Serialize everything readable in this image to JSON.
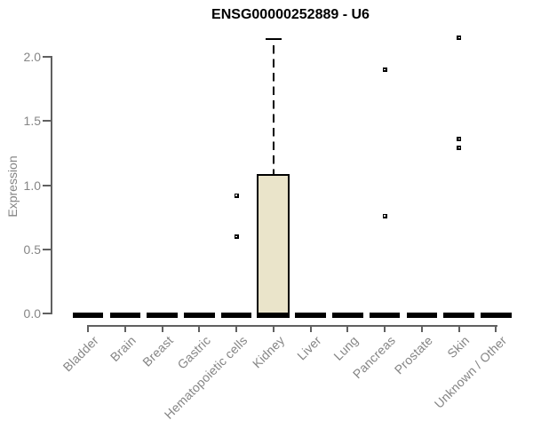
{
  "chart_data": {
    "type": "boxplot",
    "title": "ENSG00000252889 - U6",
    "ylabel": "Expression",
    "ylim": [
      0,
      2.15
    ],
    "yticks": [
      0,
      0.5,
      1,
      1.5,
      2
    ],
    "ytick_labels": [
      "0.0",
      "0.5",
      "1.0",
      "1.5",
      "2.0"
    ],
    "grid": false,
    "legend": false,
    "categories": [
      "Bladder",
      "Brain",
      "Breast",
      "Gastric",
      "Hematopoietic cells",
      "Kidney",
      "Liver",
      "Lung",
      "Pancreas",
      "Prostate",
      "Skin",
      "Unknown / Other"
    ],
    "boxes": [
      {
        "category": "Bladder",
        "q1": 0,
        "median": 0,
        "q3": 0,
        "whisker_low": 0,
        "whisker_high": 0,
        "outliers": []
      },
      {
        "category": "Brain",
        "q1": 0,
        "median": 0,
        "q3": 0,
        "whisker_low": 0,
        "whisker_high": 0,
        "outliers": []
      },
      {
        "category": "Breast",
        "q1": 0,
        "median": 0,
        "q3": 0,
        "whisker_low": 0,
        "whisker_high": 0,
        "outliers": []
      },
      {
        "category": "Gastric",
        "q1": 0,
        "median": 0,
        "q3": 0,
        "whisker_low": 0,
        "whisker_high": 0,
        "outliers": []
      },
      {
        "category": "Hematopoietic cells",
        "q1": 0,
        "median": 0,
        "q3": 0,
        "whisker_low": 0,
        "whisker_high": 0,
        "outliers": [
          0.92,
          0.6
        ]
      },
      {
        "category": "Kidney",
        "q1": 0,
        "median": 0,
        "q3": 1.08,
        "whisker_low": 0,
        "whisker_high": 2.14,
        "outliers": []
      },
      {
        "category": "Liver",
        "q1": 0,
        "median": 0,
        "q3": 0,
        "whisker_low": 0,
        "whisker_high": 0,
        "outliers": []
      },
      {
        "category": "Lung",
        "q1": 0,
        "median": 0,
        "q3": 0,
        "whisker_low": 0,
        "whisker_high": 0,
        "outliers": []
      },
      {
        "category": "Pancreas",
        "q1": 0,
        "median": 0,
        "q3": 0,
        "whisker_low": 0,
        "whisker_high": 0,
        "outliers": [
          1.9,
          0.76
        ]
      },
      {
        "category": "Prostate",
        "q1": 0,
        "median": 0,
        "q3": 0,
        "whisker_low": 0,
        "whisker_high": 0,
        "outliers": []
      },
      {
        "category": "Skin",
        "q1": 0,
        "median": 0,
        "q3": 0,
        "whisker_low": 0,
        "whisker_high": 0,
        "outliers": [
          2.15,
          1.36,
          1.29
        ]
      },
      {
        "category": "Unknown / Other",
        "q1": 0,
        "median": 0,
        "q3": 0,
        "whisker_low": 0,
        "whisker_high": 0,
        "outliers": []
      }
    ]
  },
  "styles": {
    "box_fill": "#EAE4CA",
    "box_border": "#000000",
    "axis_color": "#606060",
    "text_color": "#858585",
    "title_color": "#000000",
    "background": "#FFFFFF"
  }
}
